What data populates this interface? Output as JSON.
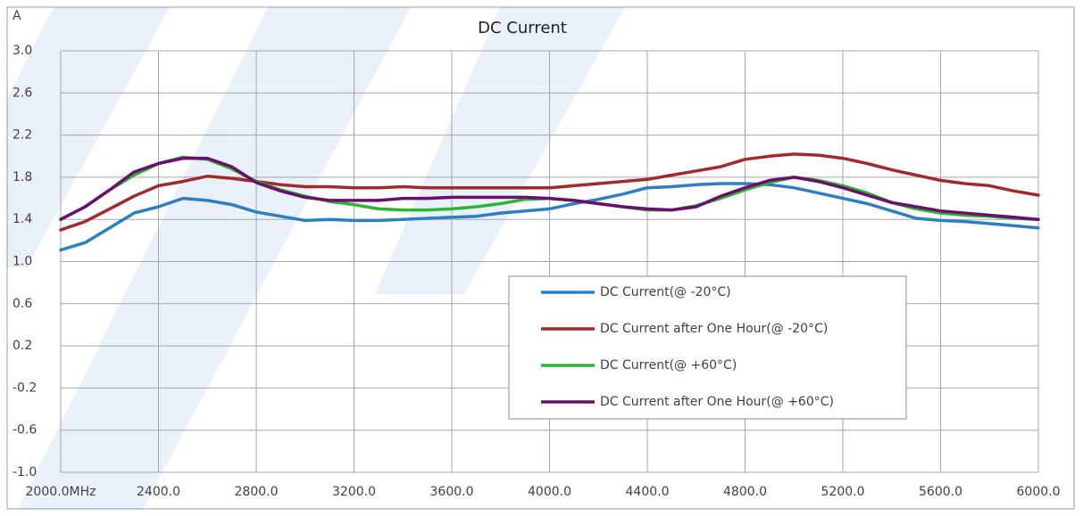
{
  "chart_data": {
    "type": "line",
    "title": "DC Current",
    "y_label": "A",
    "x": [
      2000,
      2100,
      2200,
      2300,
      2400,
      2500,
      2600,
      2700,
      2800,
      2900,
      3000,
      3100,
      3200,
      3300,
      3400,
      3500,
      3600,
      3700,
      3800,
      3900,
      4000,
      4100,
      4200,
      4300,
      4400,
      4500,
      4600,
      4700,
      4800,
      4900,
      5000,
      5100,
      5200,
      5300,
      5400,
      5500,
      5600,
      5700,
      5800,
      5900,
      6000
    ],
    "xlim": [
      2000,
      6000
    ],
    "xticks": [
      {
        "value": 2000,
        "label": "2000.0MHz"
      },
      {
        "value": 2400,
        "label": "2400.0"
      },
      {
        "value": 2800,
        "label": "2800.0"
      },
      {
        "value": 3200,
        "label": "3200.0"
      },
      {
        "value": 3600,
        "label": "3600.0"
      },
      {
        "value": 4000,
        "label": "4000.0"
      },
      {
        "value": 4400,
        "label": "4400.0"
      },
      {
        "value": 4800,
        "label": "4800.0"
      },
      {
        "value": 5200,
        "label": "5200.0"
      },
      {
        "value": 5600,
        "label": "5600.0"
      },
      {
        "value": 6000,
        "label": "6000.0"
      }
    ],
    "ylim": [
      -1.0,
      3.0
    ],
    "yticks": [
      {
        "value": -1.0,
        "label": "-1.0"
      },
      -0.6,
      -0.2,
      0.2,
      0.6,
      {
        "value": 1.0,
        "label": "1.0"
      },
      1.4,
      1.8,
      2.2,
      2.6,
      {
        "value": 3.0,
        "label": "3.0"
      }
    ],
    "grid": true,
    "series": [
      {
        "name": "DC Current(@ -20°C)",
        "color": "#2e7ec2",
        "values": [
          1.11,
          1.18,
          1.32,
          1.46,
          1.52,
          1.6,
          1.58,
          1.54,
          1.47,
          1.43,
          1.39,
          1.4,
          1.39,
          1.39,
          1.4,
          1.41,
          1.42,
          1.43,
          1.46,
          1.48,
          1.5,
          1.55,
          1.59,
          1.64,
          1.7,
          1.71,
          1.73,
          1.74,
          1.74,
          1.73,
          1.7,
          1.65,
          1.6,
          1.55,
          1.48,
          1.41,
          1.39,
          1.38,
          1.36,
          1.34,
          1.32
        ]
      },
      {
        "name": "DC Current after One Hour(@ -20°C)",
        "color": "#a12a2a",
        "values": [
          1.3,
          1.38,
          1.5,
          1.62,
          1.72,
          1.76,
          1.81,
          1.79,
          1.76,
          1.73,
          1.71,
          1.71,
          1.7,
          1.7,
          1.71,
          1.7,
          1.7,
          1.7,
          1.7,
          1.7,
          1.7,
          1.72,
          1.74,
          1.76,
          1.78,
          1.82,
          1.86,
          1.9,
          1.97,
          2.0,
          2.02,
          2.01,
          1.98,
          1.93,
          1.87,
          1.82,
          1.77,
          1.74,
          1.72,
          1.67,
          1.63
        ]
      },
      {
        "name": "DC Current(@ +60°C)",
        "color": "#2db534",
        "values": [
          1.4,
          1.52,
          1.68,
          1.82,
          1.93,
          1.99,
          1.97,
          1.88,
          1.76,
          1.68,
          1.62,
          1.57,
          1.54,
          1.5,
          1.49,
          1.49,
          1.5,
          1.52,
          1.55,
          1.59,
          1.6,
          1.58,
          1.55,
          1.52,
          1.49,
          1.49,
          1.53,
          1.6,
          1.68,
          1.75,
          1.8,
          1.77,
          1.72,
          1.65,
          1.56,
          1.5,
          1.46,
          1.44,
          1.43,
          1.41,
          1.4
        ]
      },
      {
        "name": "DC Current after One Hour(@ +60°C)",
        "color": "#6b0f6f",
        "values": [
          1.4,
          1.52,
          1.68,
          1.85,
          1.93,
          1.98,
          1.98,
          1.9,
          1.75,
          1.67,
          1.61,
          1.58,
          1.58,
          1.58,
          1.6,
          1.6,
          1.61,
          1.61,
          1.61,
          1.61,
          1.6,
          1.58,
          1.55,
          1.52,
          1.5,
          1.49,
          1.52,
          1.62,
          1.7,
          1.77,
          1.8,
          1.76,
          1.7,
          1.63,
          1.56,
          1.52,
          1.48,
          1.46,
          1.44,
          1.42,
          1.4
        ]
      }
    ]
  }
}
